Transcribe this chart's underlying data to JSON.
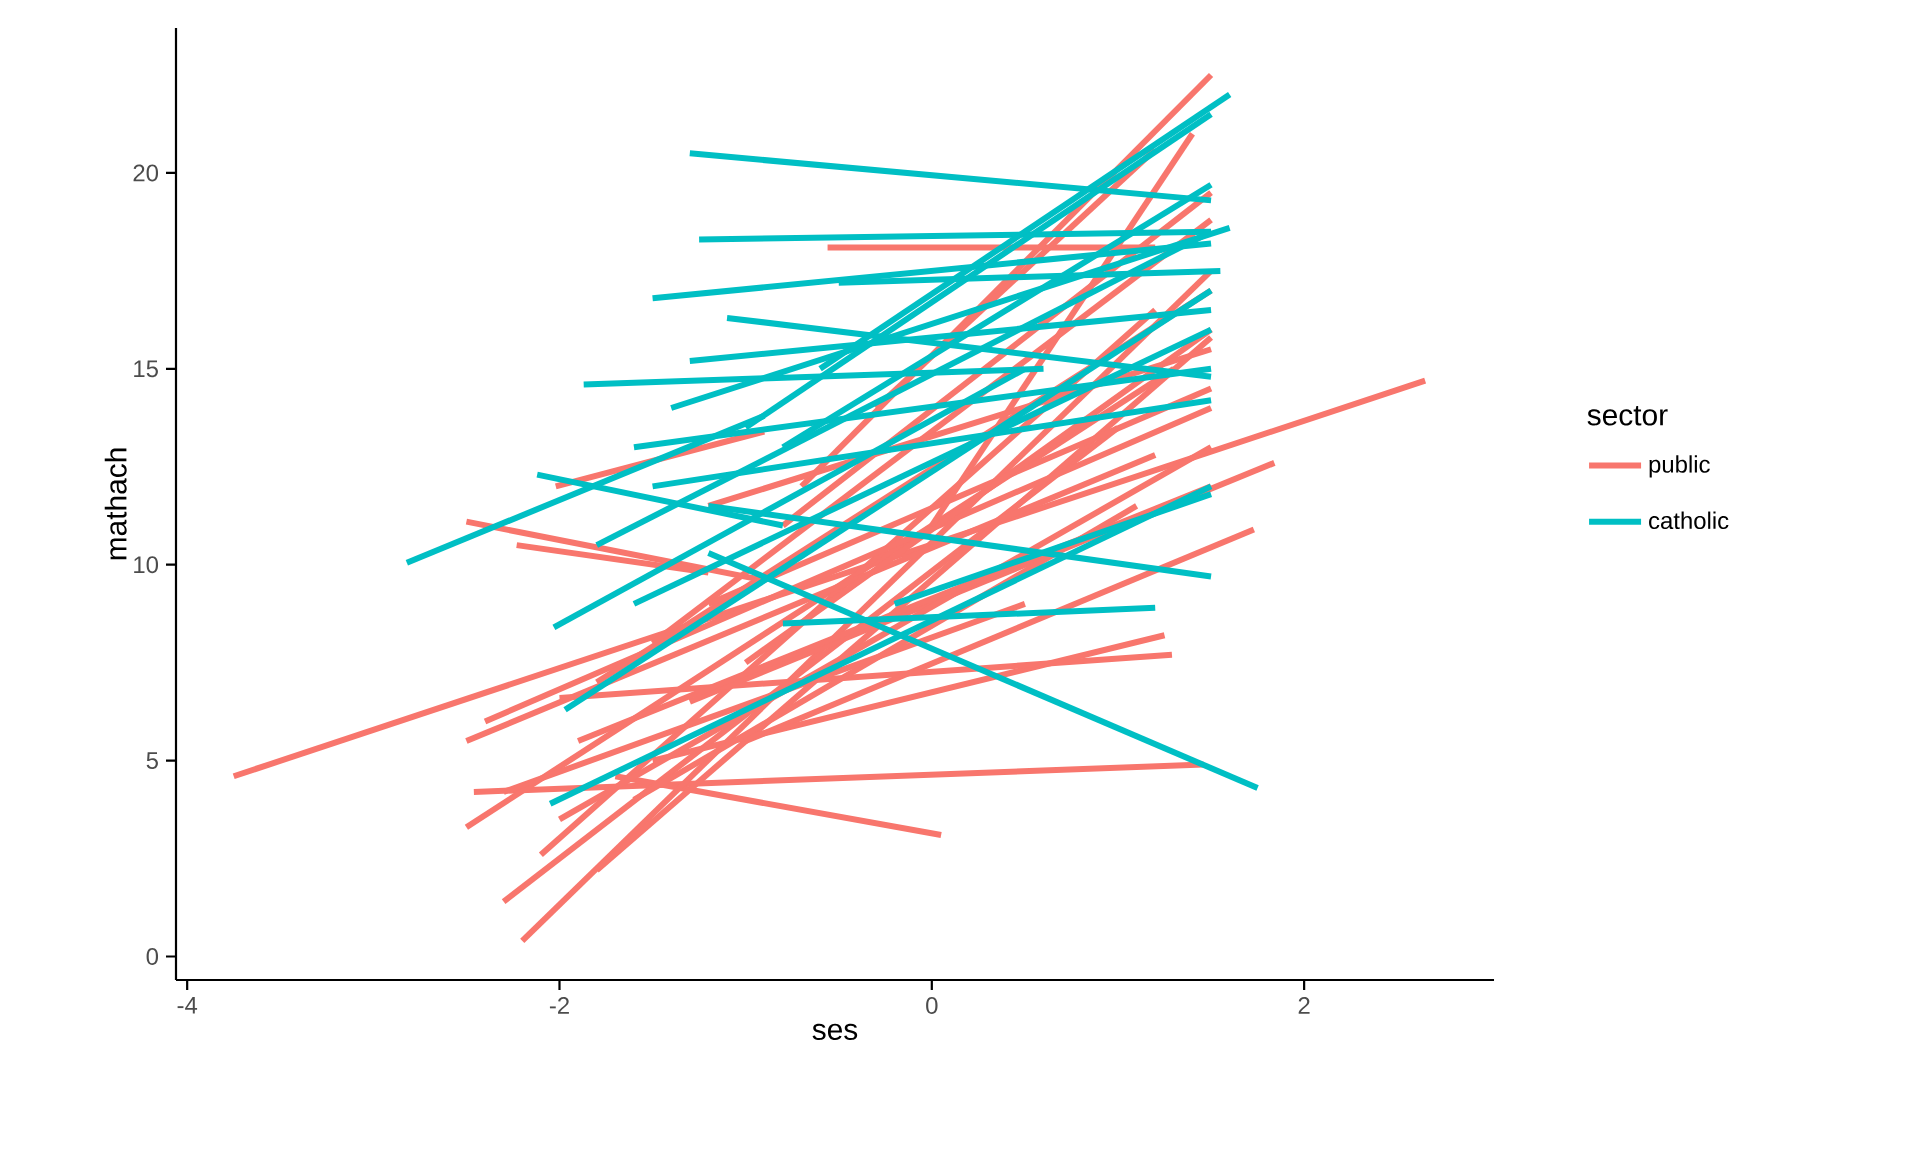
{
  "chart_data": {
    "type": "line",
    "xlabel": "ses",
    "ylabel": "mathach",
    "legend_title": "sector",
    "legend": "right",
    "grid": false,
    "xlim": [
      -4.06,
      3.02
    ],
    "ylim": [
      -0.6,
      23.7
    ],
    "xticks": [
      -4,
      -2,
      0,
      2
    ],
    "yticks": [
      0,
      5,
      10,
      15,
      20
    ],
    "series": [
      {
        "name": "public",
        "color": "#f8766d",
        "x": [
          -3.75,
          2.65
        ],
        "values": [
          4.6,
          14.7
        ]
      },
      {
        "color": "#f8766d",
        "x": [
          -2.46,
          1.46
        ],
        "values": [
          4.2,
          4.9
        ]
      },
      {
        "color": "#f8766d",
        "x": [
          -1.7,
          0.05
        ],
        "values": [
          4.6,
          3.1
        ]
      },
      {
        "color": "#f8766d",
        "x": [
          -2.5,
          -0.9
        ],
        "values": [
          11.1,
          9.6
        ]
      },
      {
        "color": "#f8766d",
        "x": [
          -2.23,
          -1.2
        ],
        "values": [
          10.5,
          9.8
        ]
      },
      {
        "color": "#f8766d",
        "x": [
          -2.02,
          -0.9
        ],
        "values": [
          12.0,
          13.4
        ]
      },
      {
        "color": "#f8766d",
        "x": [
          -2.2,
          1.5
        ],
        "values": [
          0.4,
          17.5
        ]
      },
      {
        "color": "#f8766d",
        "x": [
          -2.5,
          1.3
        ],
        "values": [
          3.3,
          15.0
        ]
      },
      {
        "color": "#f8766d",
        "x": [
          -2.3,
          1.0
        ],
        "values": [
          1.4,
          13.5
        ]
      },
      {
        "color": "#f8766d",
        "x": [
          -1.8,
          1.5
        ],
        "values": [
          2.2,
          15.8
        ]
      },
      {
        "color": "#f8766d",
        "x": [
          -2.1,
          1.2
        ],
        "values": [
          2.6,
          16.5
        ]
      },
      {
        "color": "#f8766d",
        "x": [
          -2.4,
          1.5
        ],
        "values": [
          6.0,
          14.0
        ]
      },
      {
        "color": "#f8766d",
        "x": [
          -2.5,
          1.2
        ],
        "values": [
          5.5,
          12.8
        ]
      },
      {
        "color": "#f8766d",
        "x": [
          -1.0,
          1.73
        ],
        "values": [
          5.5,
          10.9
        ]
      },
      {
        "color": "#f8766d",
        "x": [
          -1.3,
          1.84
        ],
        "values": [
          6.5,
          12.6
        ]
      },
      {
        "color": "#f8766d",
        "x": [
          -1.5,
          1.25
        ],
        "values": [
          5.0,
          8.2
        ]
      },
      {
        "color": "#f8766d",
        "x": [
          -2.0,
          1.29
        ],
        "values": [
          6.6,
          7.7
        ]
      },
      {
        "color": "#f8766d",
        "x": [
          -0.7,
          1.5
        ],
        "values": [
          12.0,
          22.5
        ]
      },
      {
        "color": "#f8766d",
        "x": [
          -0.56,
          1.2
        ],
        "values": [
          18.1,
          18.1
        ]
      },
      {
        "color": "#f8766d",
        "x": [
          -0.3,
          1.2
        ],
        "values": [
          14.0,
          20.6
        ]
      },
      {
        "color": "#f8766d",
        "x": [
          -0.8,
          1.5
        ],
        "values": [
          11.0,
          19.5
        ]
      },
      {
        "color": "#f8766d",
        "x": [
          -1.8,
          1.5
        ],
        "values": [
          7.0,
          17.0
        ]
      },
      {
        "color": "#f8766d",
        "x": [
          -1.5,
          1.5
        ],
        "values": [
          8.0,
          18.8
        ]
      },
      {
        "color": "#f8766d",
        "x": [
          -2.0,
          1.5
        ],
        "values": [
          3.5,
          13.0
        ]
      },
      {
        "color": "#f8766d",
        "x": [
          -1.2,
          1.5
        ],
        "values": [
          9.0,
          14.5
        ]
      },
      {
        "color": "#f8766d",
        "x": [
          -1.6,
          1.1
        ],
        "values": [
          4.0,
          11.5
        ]
      },
      {
        "color": "#f8766d",
        "x": [
          -2.3,
          0.5
        ],
        "values": [
          4.2,
          9.0
        ]
      },
      {
        "color": "#f8766d",
        "x": [
          -1.0,
          1.5
        ],
        "values": [
          7.5,
          16.0
        ]
      },
      {
        "color": "#f8766d",
        "x": [
          0.0,
          1.4
        ],
        "values": [
          11.0,
          21.0
        ]
      },
      {
        "color": "#f8766d",
        "x": [
          -1.9,
          1.5
        ],
        "values": [
          5.5,
          12.0
        ]
      },
      {
        "color": "#f8766d",
        "x": [
          -1.2,
          1.5
        ],
        "values": [
          11.5,
          15.5
        ]
      },
      {
        "name": "catholic",
        "color": "#00bfc4",
        "x": [
          -1.3,
          1.5
        ],
        "values": [
          20.5,
          19.3
        ]
      },
      {
        "color": "#00bfc4",
        "x": [
          -1.25,
          1.5
        ],
        "values": [
          18.3,
          18.5
        ]
      },
      {
        "color": "#00bfc4",
        "x": [
          -2.82,
          -0.9
        ],
        "values": [
          10.05,
          13.8
        ]
      },
      {
        "color": "#00bfc4",
        "x": [
          -1.2,
          1.75
        ],
        "values": [
          10.3,
          4.3
        ]
      },
      {
        "color": "#00bfc4",
        "x": [
          -1.87,
          0.6
        ],
        "values": [
          14.6,
          15.0
        ]
      },
      {
        "color": "#00bfc4",
        "x": [
          -1.5,
          1.5
        ],
        "values": [
          16.8,
          18.2
        ]
      },
      {
        "color": "#00bfc4",
        "x": [
          -0.6,
          1.6
        ],
        "values": [
          15.0,
          22.0
        ]
      },
      {
        "color": "#00bfc4",
        "x": [
          -2.05,
          1.5
        ],
        "values": [
          3.9,
          12.0
        ]
      },
      {
        "color": "#00bfc4",
        "x": [
          -2.03,
          0.5
        ],
        "values": [
          8.4,
          15.0
        ]
      },
      {
        "color": "#00bfc4",
        "x": [
          -1.97,
          1.5
        ],
        "values": [
          6.3,
          17.0
        ]
      },
      {
        "color": "#00bfc4",
        "x": [
          -2.12,
          -0.8
        ],
        "values": [
          12.3,
          11.0
        ]
      },
      {
        "color": "#00bfc4",
        "x": [
          -1.6,
          1.5
        ],
        "values": [
          13.0,
          15.0
        ]
      },
      {
        "color": "#00bfc4",
        "x": [
          -1.2,
          1.5
        ],
        "values": [
          11.5,
          9.7
        ]
      },
      {
        "color": "#00bfc4",
        "x": [
          -0.8,
          1.2
        ],
        "values": [
          8.5,
          8.9
        ]
      },
      {
        "color": "#00bfc4",
        "x": [
          -1.8,
          1.5
        ],
        "values": [
          10.5,
          18.5
        ]
      },
      {
        "color": "#00bfc4",
        "x": [
          -1.0,
          1.5
        ],
        "values": [
          13.5,
          21.5
        ]
      },
      {
        "color": "#00bfc4",
        "x": [
          -1.3,
          1.5
        ],
        "values": [
          15.2,
          16.5
        ]
      },
      {
        "color": "#00bfc4",
        "x": [
          -0.5,
          1.55
        ],
        "values": [
          17.2,
          17.5
        ]
      },
      {
        "color": "#00bfc4",
        "x": [
          -1.5,
          1.5
        ],
        "values": [
          12.0,
          14.2
        ]
      },
      {
        "color": "#00bfc4",
        "x": [
          -0.8,
          1.5
        ],
        "values": [
          13.0,
          19.7
        ]
      },
      {
        "color": "#00bfc4",
        "x": [
          -1.6,
          1.5
        ],
        "values": [
          9.0,
          16.0
        ]
      },
      {
        "color": "#00bfc4",
        "x": [
          -0.2,
          1.5
        ],
        "values": [
          9.0,
          11.8
        ]
      },
      {
        "color": "#00bfc4",
        "x": [
          -1.4,
          1.6
        ],
        "values": [
          14.0,
          18.6
        ]
      },
      {
        "color": "#00bfc4",
        "x": [
          -1.1,
          1.5
        ],
        "values": [
          16.3,
          14.8
        ]
      }
    ]
  }
}
